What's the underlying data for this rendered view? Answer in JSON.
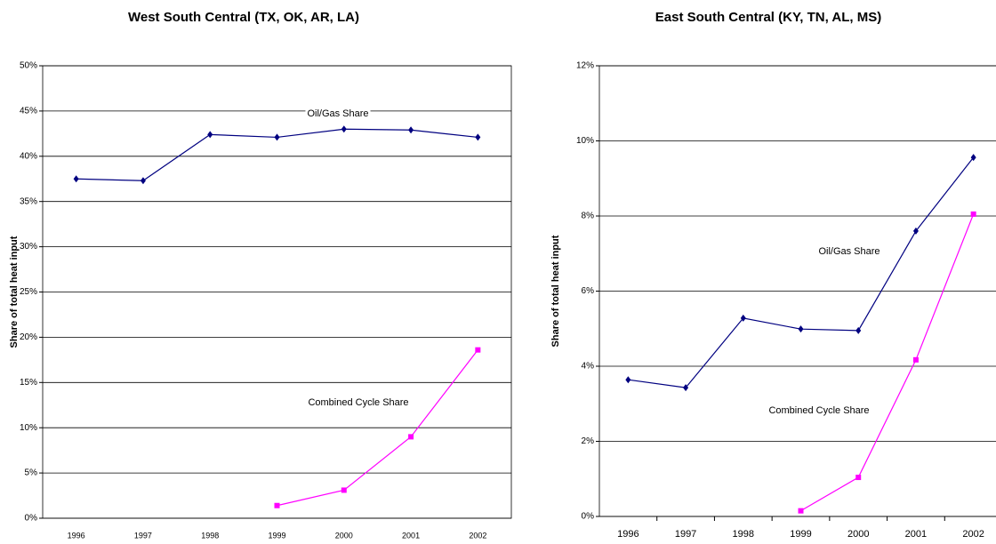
{
  "chart_data": [
    {
      "type": "line",
      "title": "West South Central (TX, OK, AR, LA)",
      "y_label": "Share of total heat input",
      "categories": [
        "1996",
        "1997",
        "1998",
        "1999",
        "2000",
        "2001",
        "2002"
      ],
      "series": [
        {
          "name": "Oil/Gas Share",
          "color": "#000080",
          "marker": "diamond",
          "values": [
            37.5,
            37.3,
            42.4,
            42.1,
            43.0,
            42.9,
            42.1
          ]
        },
        {
          "name": "Combined Cycle Share",
          "color": "#ff00ff",
          "marker": "square",
          "values": [
            null,
            null,
            null,
            1.4,
            3.1,
            9.0,
            18.6
          ]
        }
      ],
      "annotations": [
        "Oil/Gas Share",
        "Combined Cycle Share"
      ],
      "ylim": [
        0,
        50
      ],
      "yticks": [
        {
          "value": 0,
          "label": "0%"
        },
        {
          "value": 5,
          "label": "5%"
        },
        {
          "value": 10,
          "label": "10%"
        },
        {
          "value": 15,
          "label": "15%"
        },
        {
          "value": 20,
          "label": "20%"
        },
        {
          "value": 25,
          "label": "25%"
        },
        {
          "value": 30,
          "label": "30%"
        },
        {
          "value": 35,
          "label": "35%"
        },
        {
          "value": 40,
          "label": "40%"
        },
        {
          "value": 45,
          "label": "45%"
        },
        {
          "value": 50,
          "label": "50%"
        }
      ],
      "grid": true
    },
    {
      "type": "line",
      "title": "East South Central (KY, TN, AL, MS)",
      "y_label": "Share of total heat input",
      "categories": [
        "1996",
        "1997",
        "1998",
        "1999",
        "2000",
        "2001",
        "2002"
      ],
      "series": [
        {
          "name": "Oil/Gas Share",
          "color": "#000080",
          "marker": "diamond",
          "values": [
            3.64,
            3.43,
            5.28,
            4.99,
            4.95,
            7.6,
            9.56
          ]
        },
        {
          "name": "Combined Cycle Share",
          "color": "#ff00ff",
          "marker": "square",
          "values": [
            null,
            null,
            null,
            0.15,
            1.04,
            4.17,
            8.05
          ]
        }
      ],
      "annotations": [
        "Oil/Gas Share",
        "Combined Cycle Share"
      ],
      "ylim": [
        0,
        12
      ],
      "yticks": [
        {
          "value": 0,
          "label": "0%"
        },
        {
          "value": 2,
          "label": "2%"
        },
        {
          "value": 4,
          "label": "4%"
        },
        {
          "value": 6,
          "label": "6%"
        },
        {
          "value": 8,
          "label": "8%"
        },
        {
          "value": 10,
          "label": "10%"
        },
        {
          "value": 12,
          "label": "12%"
        }
      ],
      "grid": true
    }
  ]
}
